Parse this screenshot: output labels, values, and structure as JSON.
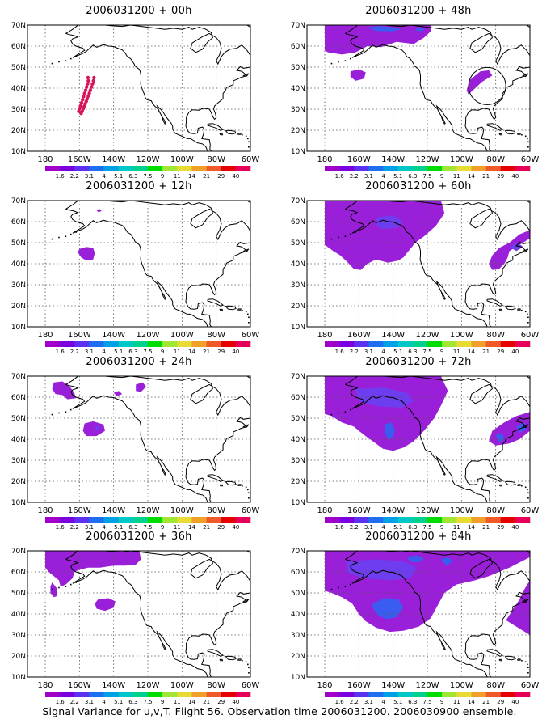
{
  "lat_labels": [
    "70N",
    "60N",
    "50N",
    "40N",
    "30N",
    "20N",
    "10N"
  ],
  "lon_labels": [
    "180",
    "160W",
    "140W",
    "120W",
    "100W",
    "80W",
    "60W"
  ],
  "colorbar": {
    "labels": [
      "1.6",
      "2.2",
      "3.1",
      "4",
      "5.1",
      "6.3",
      "7.5",
      "9",
      "11",
      "14",
      "21",
      "29",
      "40"
    ],
    "colors": [
      "#a000c8",
      "#7a00e0",
      "#5a32f0",
      "#1e6ef0",
      "#00a0e6",
      "#00c8c8",
      "#00d28c",
      "#00dc00",
      "#a0e632",
      "#e6dc32",
      "#f0a028",
      "#f05a28",
      "#e60000",
      "#e6005a"
    ]
  },
  "panels": [
    {
      "title": "2006031200 + 00h"
    },
    {
      "title": "2006031200 + 12h"
    },
    {
      "title": "2006031200 + 24h"
    },
    {
      "title": "2006031200 + 36h"
    },
    {
      "title": "2006031200 + 48h"
    },
    {
      "title": "2006031200 + 60h"
    },
    {
      "title": "2006031200 + 72h"
    },
    {
      "title": "2006031200 + 84h"
    }
  ],
  "caption": "Signal Variance for u,v,T. Flight 56. Observation time 2006031200. 2006030900 ensemble.",
  "colors": {
    "purple": "#9a1fd8",
    "blue": "#3a5cf0",
    "violet": "#6f3df0",
    "track": "#d6145a"
  }
}
